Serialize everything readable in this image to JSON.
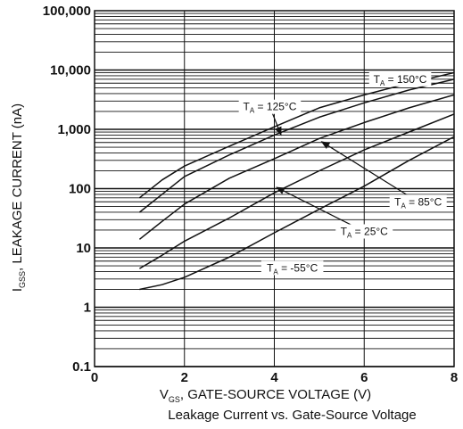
{
  "chart_data": {
    "type": "line",
    "title": "Leakage Current vs. Gate-Source Voltage",
    "xlabel": "V_GS, GATE-SOURCE VOLTAGE (V)",
    "xlabel_parts": {
      "main": "V",
      "sub": "GS",
      "rest": ", GATE-SOURCE VOLTAGE (V)"
    },
    "ylabel": "I_GSS, LEAKAGE CURRENT (nA)",
    "ylabel_parts": {
      "main": "I",
      "sub": "GSS",
      "rest": ", LEAKAGE CURRENT (nA)"
    },
    "xlim": [
      0,
      8
    ],
    "ylim": [
      0.1,
      100000
    ],
    "yscale": "log",
    "grid": true,
    "x_ticks": [
      0,
      2,
      4,
      6,
      8
    ],
    "x_tick_labels": [
      "0",
      "2",
      "4",
      "6",
      "8"
    ],
    "y_ticks": [
      0.1,
      1,
      10,
      100,
      1000,
      10000,
      100000
    ],
    "y_tick_labels": [
      "0.1",
      "1",
      "10",
      "100",
      "1,000",
      "10,000",
      "100,000"
    ],
    "series": [
      {
        "name": "T_A = 150°C",
        "label_main": "T",
        "label_sub": "A",
        "label_rest": " = 150°C",
        "x": [
          1,
          1.5,
          2,
          3,
          4,
          5,
          6,
          7,
          8
        ],
        "y": [
          70,
          140,
          240,
          520,
          1100,
          2300,
          3800,
          6000,
          9000
        ]
      },
      {
        "name": "T_A = 125°C",
        "label_main": "T",
        "label_sub": "A",
        "label_rest": " = 125°C",
        "x": [
          1,
          1.5,
          2,
          3,
          4,
          5,
          6,
          7,
          8
        ],
        "y": [
          40,
          80,
          160,
          370,
          800,
          1600,
          2800,
          4600,
          7000
        ]
      },
      {
        "name": "T_A = 85°C",
        "label_main": "T",
        "label_sub": "A",
        "label_rest": " = 85°C",
        "x": [
          1,
          1.5,
          2,
          3,
          4,
          5,
          6,
          7,
          8
        ],
        "y": [
          14,
          28,
          55,
          150,
          320,
          700,
          1300,
          2300,
          3800
        ]
      },
      {
        "name": "T_A = 25°C",
        "label_main": "T",
        "label_sub": "A",
        "label_rest": " = 25°C",
        "x": [
          1,
          1.5,
          2,
          3,
          4,
          5,
          6,
          7,
          8
        ],
        "y": [
          4.5,
          7.5,
          13,
          32,
          85,
          200,
          450,
          900,
          1800
        ]
      },
      {
        "name": "T_A = -55°C",
        "label_main": "T",
        "label_sub": "A",
        "label_rest": " = -55°C",
        "x": [
          1,
          1.5,
          2,
          3,
          4,
          5,
          6,
          7,
          8
        ],
        "y": [
          2,
          2.4,
          3.2,
          7,
          18,
          45,
          110,
          300,
          750
        ]
      }
    ],
    "annotations": [
      {
        "series": 0,
        "text": "T_A = 150°C",
        "label_x": 6.8,
        "label_y": 7000,
        "arrow": false
      },
      {
        "series": 1,
        "text": "T_A = 125°C",
        "label_x": 3.9,
        "label_y": 2400,
        "arrow": true,
        "arrow_to_x": 4.15,
        "arrow_to_y": 800
      },
      {
        "series": 2,
        "text": "T_A = 85°C",
        "label_x": 7.2,
        "label_y": 60,
        "arrow": true,
        "arrow_to_x": 5.05,
        "arrow_to_y": 620
      },
      {
        "series": 3,
        "text": "T_A = 25°C",
        "label_x": 6.0,
        "label_y": 19,
        "arrow": true,
        "arrow_to_x": 4.05,
        "arrow_to_y": 105
      },
      {
        "series": 4,
        "text": "T_A = -55°C",
        "label_x": 4.4,
        "label_y": 4.6,
        "arrow": false
      }
    ]
  }
}
